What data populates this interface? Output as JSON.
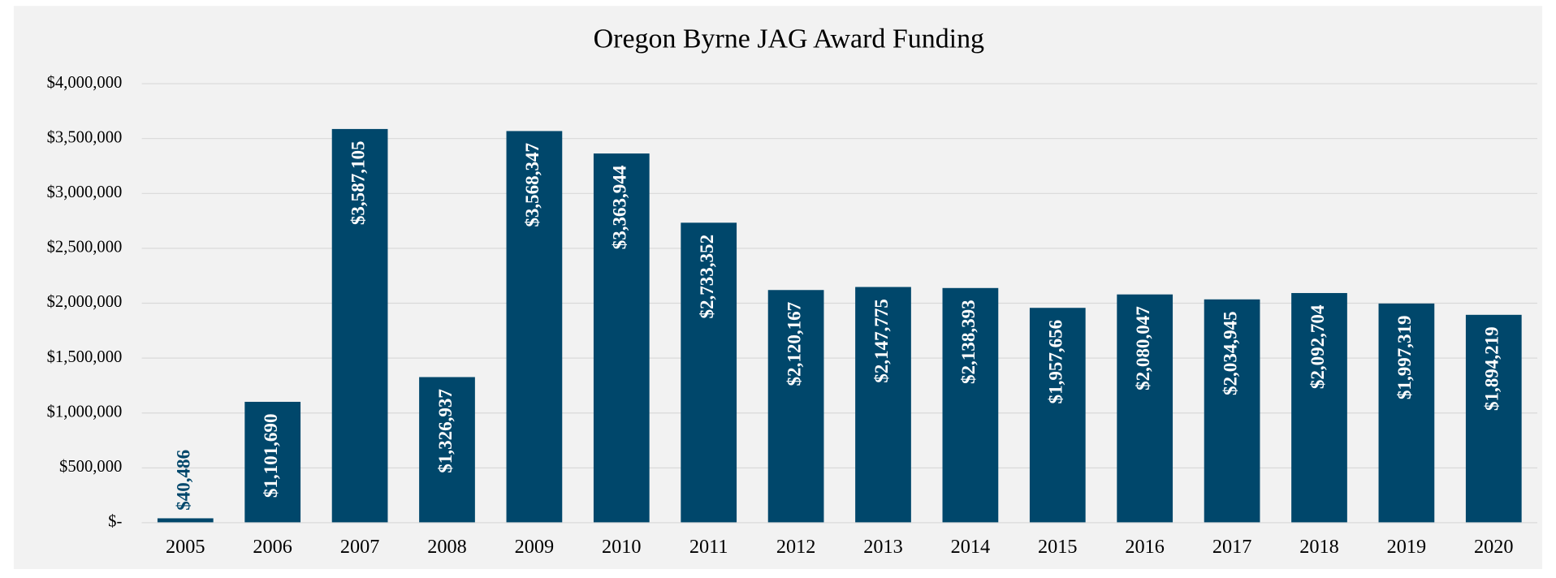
{
  "chart_data": {
    "type": "bar",
    "title": "Oregon Byrne JAG Award Funding",
    "categories": [
      "2005",
      "2006",
      "2007",
      "2008",
      "2009",
      "2010",
      "2011",
      "2012",
      "2013",
      "2014",
      "2015",
      "2016",
      "2017",
      "2018",
      "2019",
      "2020"
    ],
    "values": [
      40486,
      1101690,
      3587105,
      1326937,
      3568347,
      3363944,
      2733352,
      2120167,
      2147775,
      2138393,
      1957656,
      2080047,
      2034945,
      2092704,
      1997319,
      1894219
    ],
    "value_labels": [
      "$40,486",
      "$1,101,690",
      "$3,587,105",
      "$1,326,937",
      "$3,568,347",
      "$3,363,944",
      "$2,733,352",
      "$2,120,167",
      "$2,147,775",
      "$2,138,393",
      "$1,957,656",
      "$2,080,047",
      "$2,034,945",
      "$2,092,704",
      "$1,997,319",
      "$1,894,219"
    ],
    "color": "#00476b",
    "ylim": [
      0,
      4000000
    ],
    "yticks": [
      {
        "value": 0,
        "label": "$-"
      },
      {
        "value": 500000,
        "label": "$500,000"
      },
      {
        "value": 1000000,
        "label": "$1,000,000"
      },
      {
        "value": 1500000,
        "label": "$1,500,000"
      },
      {
        "value": 2000000,
        "label": "$2,000,000"
      },
      {
        "value": 2500000,
        "label": "$2,500,000"
      },
      {
        "value": 3000000,
        "label": "$3,000,000"
      },
      {
        "value": 3500000,
        "label": "$3,500,000"
      },
      {
        "value": 4000000,
        "label": "$4,000,000"
      }
    ],
    "grid": true
  }
}
